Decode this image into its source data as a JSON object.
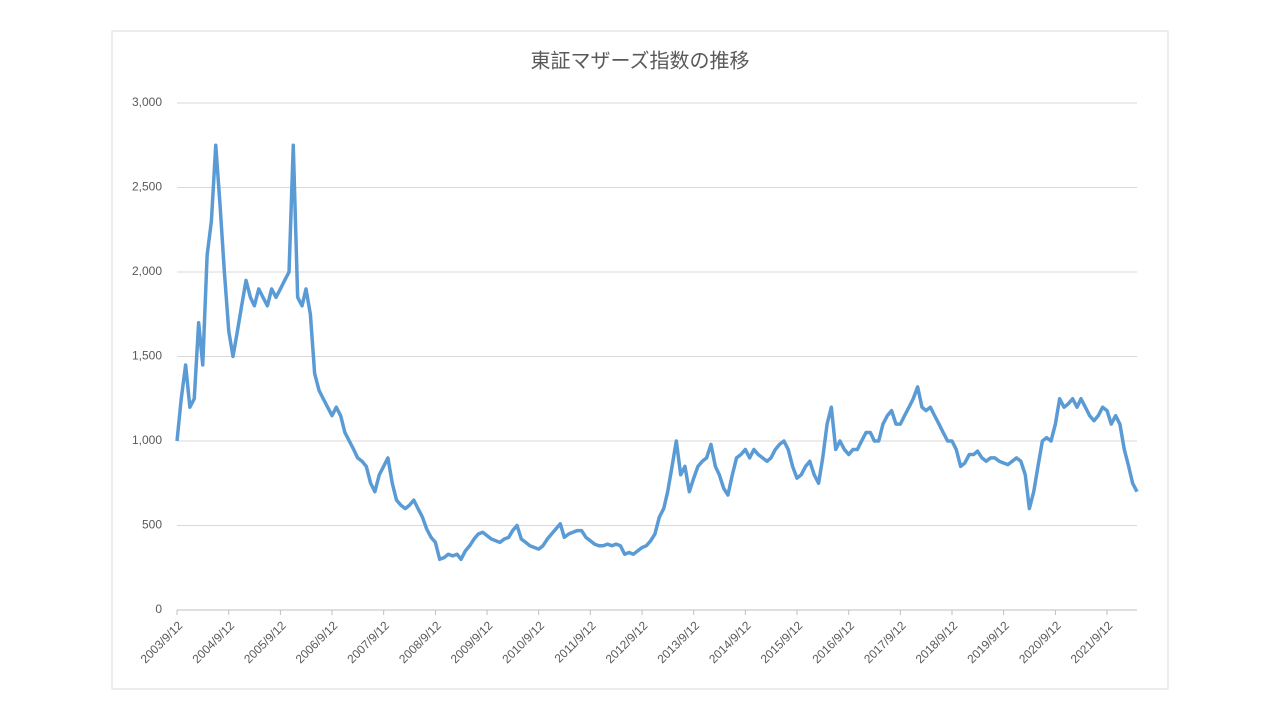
{
  "chart_data": {
    "type": "line",
    "title": "東証マザーズ指数の推移",
    "x": [
      "2003/9/12",
      "2003/10/12",
      "2003/11/12",
      "2003/12/12",
      "2004/1/12",
      "2004/2/12",
      "2004/3/12",
      "2004/4/12",
      "2004/5/12",
      "2004/6/12",
      "2004/7/12",
      "2004/8/12",
      "2004/9/12",
      "2004/10/12",
      "2004/11/12",
      "2004/12/12",
      "2005/1/12",
      "2005/2/12",
      "2005/3/12",
      "2005/4/12",
      "2005/5/12",
      "2005/6/12",
      "2005/7/12",
      "2005/8/12",
      "2005/9/12",
      "2005/10/12",
      "2005/11/12",
      "2005/12/12",
      "2006/1/12",
      "2006/2/12",
      "2006/3/12",
      "2006/4/12",
      "2006/5/12",
      "2006/6/12",
      "2006/7/12",
      "2006/8/12",
      "2006/9/12",
      "2006/10/12",
      "2006/11/12",
      "2006/12/12",
      "2007/1/12",
      "2007/2/12",
      "2007/3/12",
      "2007/4/12",
      "2007/5/12",
      "2007/6/12",
      "2007/7/12",
      "2007/8/12",
      "2007/9/12",
      "2007/10/12",
      "2007/11/12",
      "2007/12/12",
      "2008/1/12",
      "2008/2/12",
      "2008/3/12",
      "2008/4/12",
      "2008/5/12",
      "2008/6/12",
      "2008/7/12",
      "2008/8/12",
      "2008/9/12",
      "2008/10/12",
      "2008/11/12",
      "2008/12/12",
      "2009/1/12",
      "2009/2/12",
      "2009/3/12",
      "2009/4/12",
      "2009/5/12",
      "2009/6/12",
      "2009/7/12",
      "2009/8/12",
      "2009/9/12",
      "2009/10/12",
      "2009/11/12",
      "2009/12/12",
      "2010/1/12",
      "2010/2/12",
      "2010/3/12",
      "2010/4/12",
      "2010/5/12",
      "2010/6/12",
      "2010/7/12",
      "2010/8/12",
      "2010/9/12",
      "2010/10/12",
      "2010/11/12",
      "2010/12/12",
      "2011/1/12",
      "2011/2/12",
      "2011/3/12",
      "2011/4/12",
      "2011/5/12",
      "2011/6/12",
      "2011/7/12",
      "2011/8/12",
      "2011/9/12",
      "2011/10/12",
      "2011/11/12",
      "2011/12/12",
      "2012/1/12",
      "2012/2/12",
      "2012/3/12",
      "2012/4/12",
      "2012/5/12",
      "2012/6/12",
      "2012/7/12",
      "2012/8/12",
      "2012/9/12",
      "2012/10/12",
      "2012/11/12",
      "2012/12/12",
      "2013/1/12",
      "2013/2/12",
      "2013/3/12",
      "2013/4/12",
      "2013/5/12",
      "2013/6/12",
      "2013/7/12",
      "2013/8/12",
      "2013/9/12",
      "2013/10/12",
      "2013/11/12",
      "2013/12/12",
      "2014/1/12",
      "2014/2/12",
      "2014/3/12",
      "2014/4/12",
      "2014/5/12",
      "2014/6/12",
      "2014/7/12",
      "2014/8/12",
      "2014/9/12",
      "2014/10/12",
      "2014/11/12",
      "2014/12/12",
      "2015/1/12",
      "2015/2/12",
      "2015/3/12",
      "2015/4/12",
      "2015/5/12",
      "2015/6/12",
      "2015/7/12",
      "2015/8/12",
      "2015/9/12",
      "2015/10/12",
      "2015/11/12",
      "2015/12/12",
      "2016/1/12",
      "2016/2/12",
      "2016/3/12",
      "2016/4/12",
      "2016/5/12",
      "2016/6/12",
      "2016/7/12",
      "2016/8/12",
      "2016/9/12",
      "2016/10/12",
      "2016/11/12",
      "2016/12/12",
      "2017/1/12",
      "2017/2/12",
      "2017/3/12",
      "2017/4/12",
      "2017/5/12",
      "2017/6/12",
      "2017/7/12",
      "2017/8/12",
      "2017/9/12",
      "2017/10/12",
      "2017/11/12",
      "2017/12/12",
      "2018/1/12",
      "2018/2/12",
      "2018/3/12",
      "2018/4/12",
      "2018/5/12",
      "2018/6/12",
      "2018/7/12",
      "2018/8/12",
      "2018/9/12",
      "2018/10/12",
      "2018/11/12",
      "2018/12/12",
      "2019/1/12",
      "2019/2/12",
      "2019/3/12",
      "2019/4/12",
      "2019/5/12",
      "2019/6/12",
      "2019/7/12",
      "2019/8/12",
      "2019/9/12",
      "2019/10/12",
      "2019/11/12",
      "2019/12/12",
      "2020/1/12",
      "2020/2/12",
      "2020/3/12",
      "2020/4/12",
      "2020/5/12",
      "2020/6/12",
      "2020/7/12",
      "2020/8/12",
      "2020/9/12",
      "2020/10/12",
      "2020/11/12",
      "2020/12/12",
      "2021/1/12",
      "2021/2/12",
      "2021/3/12",
      "2021/4/12",
      "2021/5/12",
      "2021/6/12",
      "2021/7/12",
      "2021/8/12",
      "2021/9/12",
      "2021/10/12",
      "2021/11/12",
      "2021/12/12",
      "2022/1/12",
      "2022/2/12",
      "2022/3/12",
      "2022/4/12"
    ],
    "values": [
      1000,
      1250,
      1450,
      1200,
      1250,
      1700,
      1450,
      2100,
      2300,
      2750,
      2400,
      2000,
      1650,
      1500,
      1650,
      1800,
      1950,
      1850,
      1800,
      1900,
      1850,
      1800,
      1900,
      1850,
      1900,
      1950,
      2000,
      2750,
      1850,
      1800,
      1900,
      1750,
      1400,
      1300,
      1250,
      1200,
      1150,
      1200,
      1150,
      1050,
      1000,
      950,
      900,
      880,
      850,
      750,
      700,
      800,
      850,
      900,
      750,
      650,
      620,
      600,
      620,
      650,
      600,
      550,
      480,
      430,
      400,
      300,
      310,
      330,
      320,
      330,
      300,
      350,
      380,
      420,
      450,
      460,
      440,
      420,
      410,
      400,
      420,
      430,
      470,
      500,
      420,
      400,
      380,
      370,
      360,
      380,
      420,
      450,
      480,
      510,
      430,
      450,
      460,
      470,
      470,
      430,
      410,
      390,
      380,
      380,
      390,
      380,
      390,
      380,
      330,
      340,
      330,
      350,
      370,
      380,
      410,
      450,
      550,
      600,
      700,
      850,
      1000,
      800,
      850,
      700,
      780,
      850,
      880,
      900,
      980,
      850,
      800,
      720,
      680,
      800,
      900,
      920,
      950,
      900,
      950,
      920,
      900,
      880,
      900,
      950,
      980,
      1000,
      950,
      850,
      780,
      800,
      850,
      880,
      800,
      750,
      900,
      1100,
      1200,
      950,
      1000,
      950,
      920,
      950,
      950,
      1000,
      1050,
      1050,
      1000,
      1000,
      1100,
      1150,
      1180,
      1100,
      1100,
      1150,
      1200,
      1250,
      1320,
      1200,
      1180,
      1200,
      1150,
      1100,
      1050,
      1000,
      1000,
      950,
      850,
      870,
      920,
      920,
      940,
      900,
      880,
      900,
      900,
      880,
      870,
      860,
      880,
      900,
      880,
      800,
      600,
      700,
      850,
      1000,
      1020,
      1000,
      1100,
      1250,
      1200,
      1220,
      1250,
      1200,
      1250,
      1200,
      1150,
      1120,
      1150,
      1200,
      1180,
      1100,
      1150,
      1100,
      950,
      850,
      750,
      700
    ],
    "color": "#5b9bd5",
    "xlim": [
      "2003/9/12",
      "2022/4/12"
    ],
    "xticks": [
      "2003/9/12",
      "2004/9/12",
      "2005/9/12",
      "2006/9/12",
      "2007/9/12",
      "2008/9/12",
      "2009/9/12",
      "2010/9/12",
      "2011/9/12",
      "2012/9/12",
      "2013/9/12",
      "2014/9/12",
      "2015/9/12",
      "2016/9/12",
      "2017/9/12",
      "2018/9/12",
      "2019/9/12",
      "2020/9/12",
      "2021/9/12"
    ],
    "ylim": [
      0,
      3000
    ],
    "yticks": [
      0,
      {
        "value": 500,
        "label": "500"
      },
      {
        "value": 1000,
        "label": "1,000"
      },
      {
        "value": 1500,
        "label": "1,500"
      },
      {
        "value": 2000,
        "label": "2,000"
      },
      {
        "value": 2500,
        "label": "2,500"
      },
      {
        "value": 3000,
        "label": "3,000"
      }
    ],
    "grid": true
  }
}
